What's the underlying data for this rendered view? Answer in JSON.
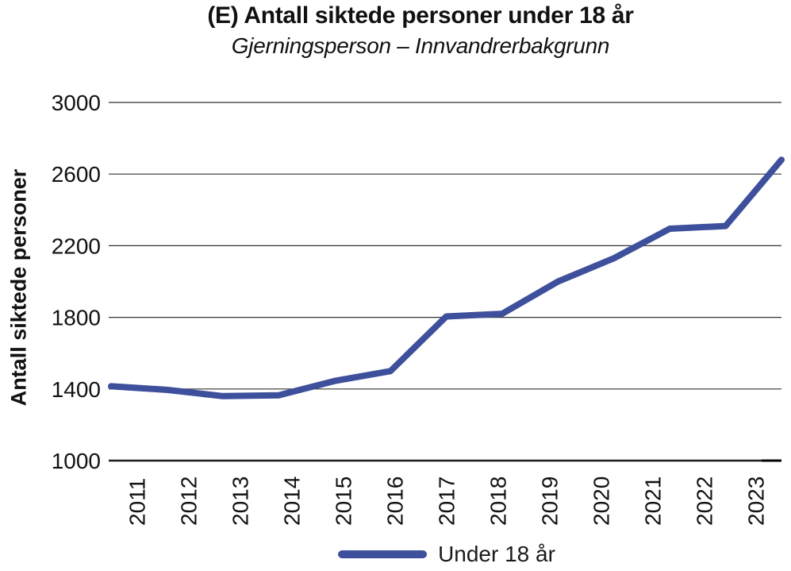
{
  "header": {
    "title": "(E) Antall siktede personer under 18 år",
    "subtitle": "Gjerningsperson – Innvandrerbakgrunn"
  },
  "legend": {
    "label": "Under 18 år"
  },
  "colors": {
    "line": "#3e4f9c",
    "text": "#111111",
    "grid": "#333333",
    "axis": "#1a1a1a"
  },
  "chart_data": {
    "type": "line",
    "title": "(E) Antall siktede personer under 18 år",
    "subtitle": "Gjerningsperson – Innvandrerbakgrunn",
    "xlabel": "",
    "ylabel": "Antall siktede personer",
    "categories": [
      "2011",
      "2012",
      "2013",
      "2014",
      "2015",
      "2016",
      "2017",
      "2018",
      "2019",
      "2020",
      "2021",
      "2022",
      "2023"
    ],
    "series": [
      {
        "name": "Under 18 år",
        "values": [
          1415,
          1395,
          1360,
          1365,
          1445,
          1500,
          1805,
          1820,
          2000,
          2130,
          2295,
          2310,
          2680
        ]
      }
    ],
    "ylim": [
      1000,
      3000
    ],
    "yticks": [
      1000,
      1400,
      1800,
      2200,
      2600,
      3000
    ],
    "grid": "horizontal",
    "legend_position": "bottom",
    "line_color": "#3e4f9c"
  }
}
